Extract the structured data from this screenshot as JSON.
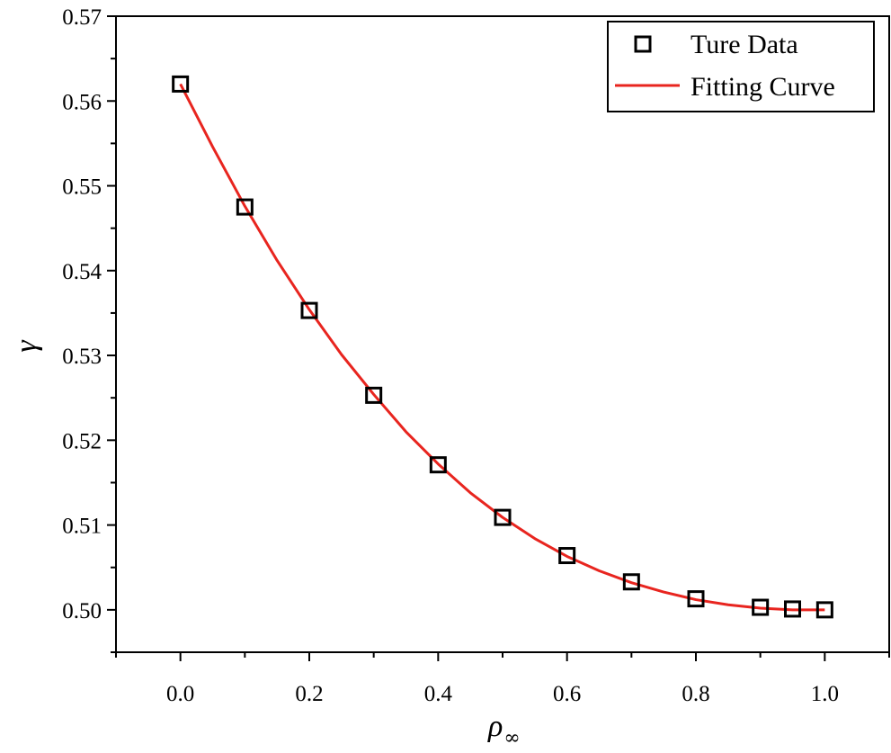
{
  "chart_data": {
    "type": "scatter",
    "title": "",
    "xlabel": "ρ",
    "xlabel_subscript": "∞",
    "ylabel": "γ",
    "xlim": [
      -0.1,
      1.1
    ],
    "ylim": [
      0.495,
      0.57
    ],
    "x_ticks": [
      "0.0",
      "0.2",
      "0.4",
      "0.6",
      "0.8",
      "1.0"
    ],
    "y_ticks": [
      "0.50",
      "0.51",
      "0.52",
      "0.53",
      "0.54",
      "0.55",
      "0.56",
      "0.57"
    ],
    "grid": false,
    "legend_position": "top-right",
    "series": [
      {
        "name": "Ture Data",
        "kind": "markers",
        "marker": "open-square",
        "color": "#000000",
        "x": [
          0.0,
          0.1,
          0.2,
          0.3,
          0.4,
          0.5,
          0.6,
          0.7,
          0.8,
          0.9,
          0.95,
          1.0
        ],
        "y": [
          0.562,
          0.5475,
          0.5353,
          0.5253,
          0.5171,
          0.5109,
          0.5064,
          0.5033,
          0.5013,
          0.5003,
          0.5001,
          0.5
        ]
      },
      {
        "name": "Fitting Curve",
        "kind": "line",
        "color": "#e8251f",
        "x": [
          0.0,
          0.05,
          0.1,
          0.15,
          0.2,
          0.25,
          0.3,
          0.35,
          0.4,
          0.45,
          0.5,
          0.55,
          0.6,
          0.65,
          0.7,
          0.75,
          0.8,
          0.85,
          0.9,
          0.95,
          1.0
        ],
        "y": [
          0.562,
          0.5546,
          0.5476,
          0.5412,
          0.5354,
          0.5301,
          0.5254,
          0.521,
          0.5172,
          0.5138,
          0.5109,
          0.5084,
          0.5063,
          0.5046,
          0.5032,
          0.5021,
          0.5012,
          0.5006,
          0.5002,
          0.5,
          0.5
        ]
      }
    ]
  }
}
